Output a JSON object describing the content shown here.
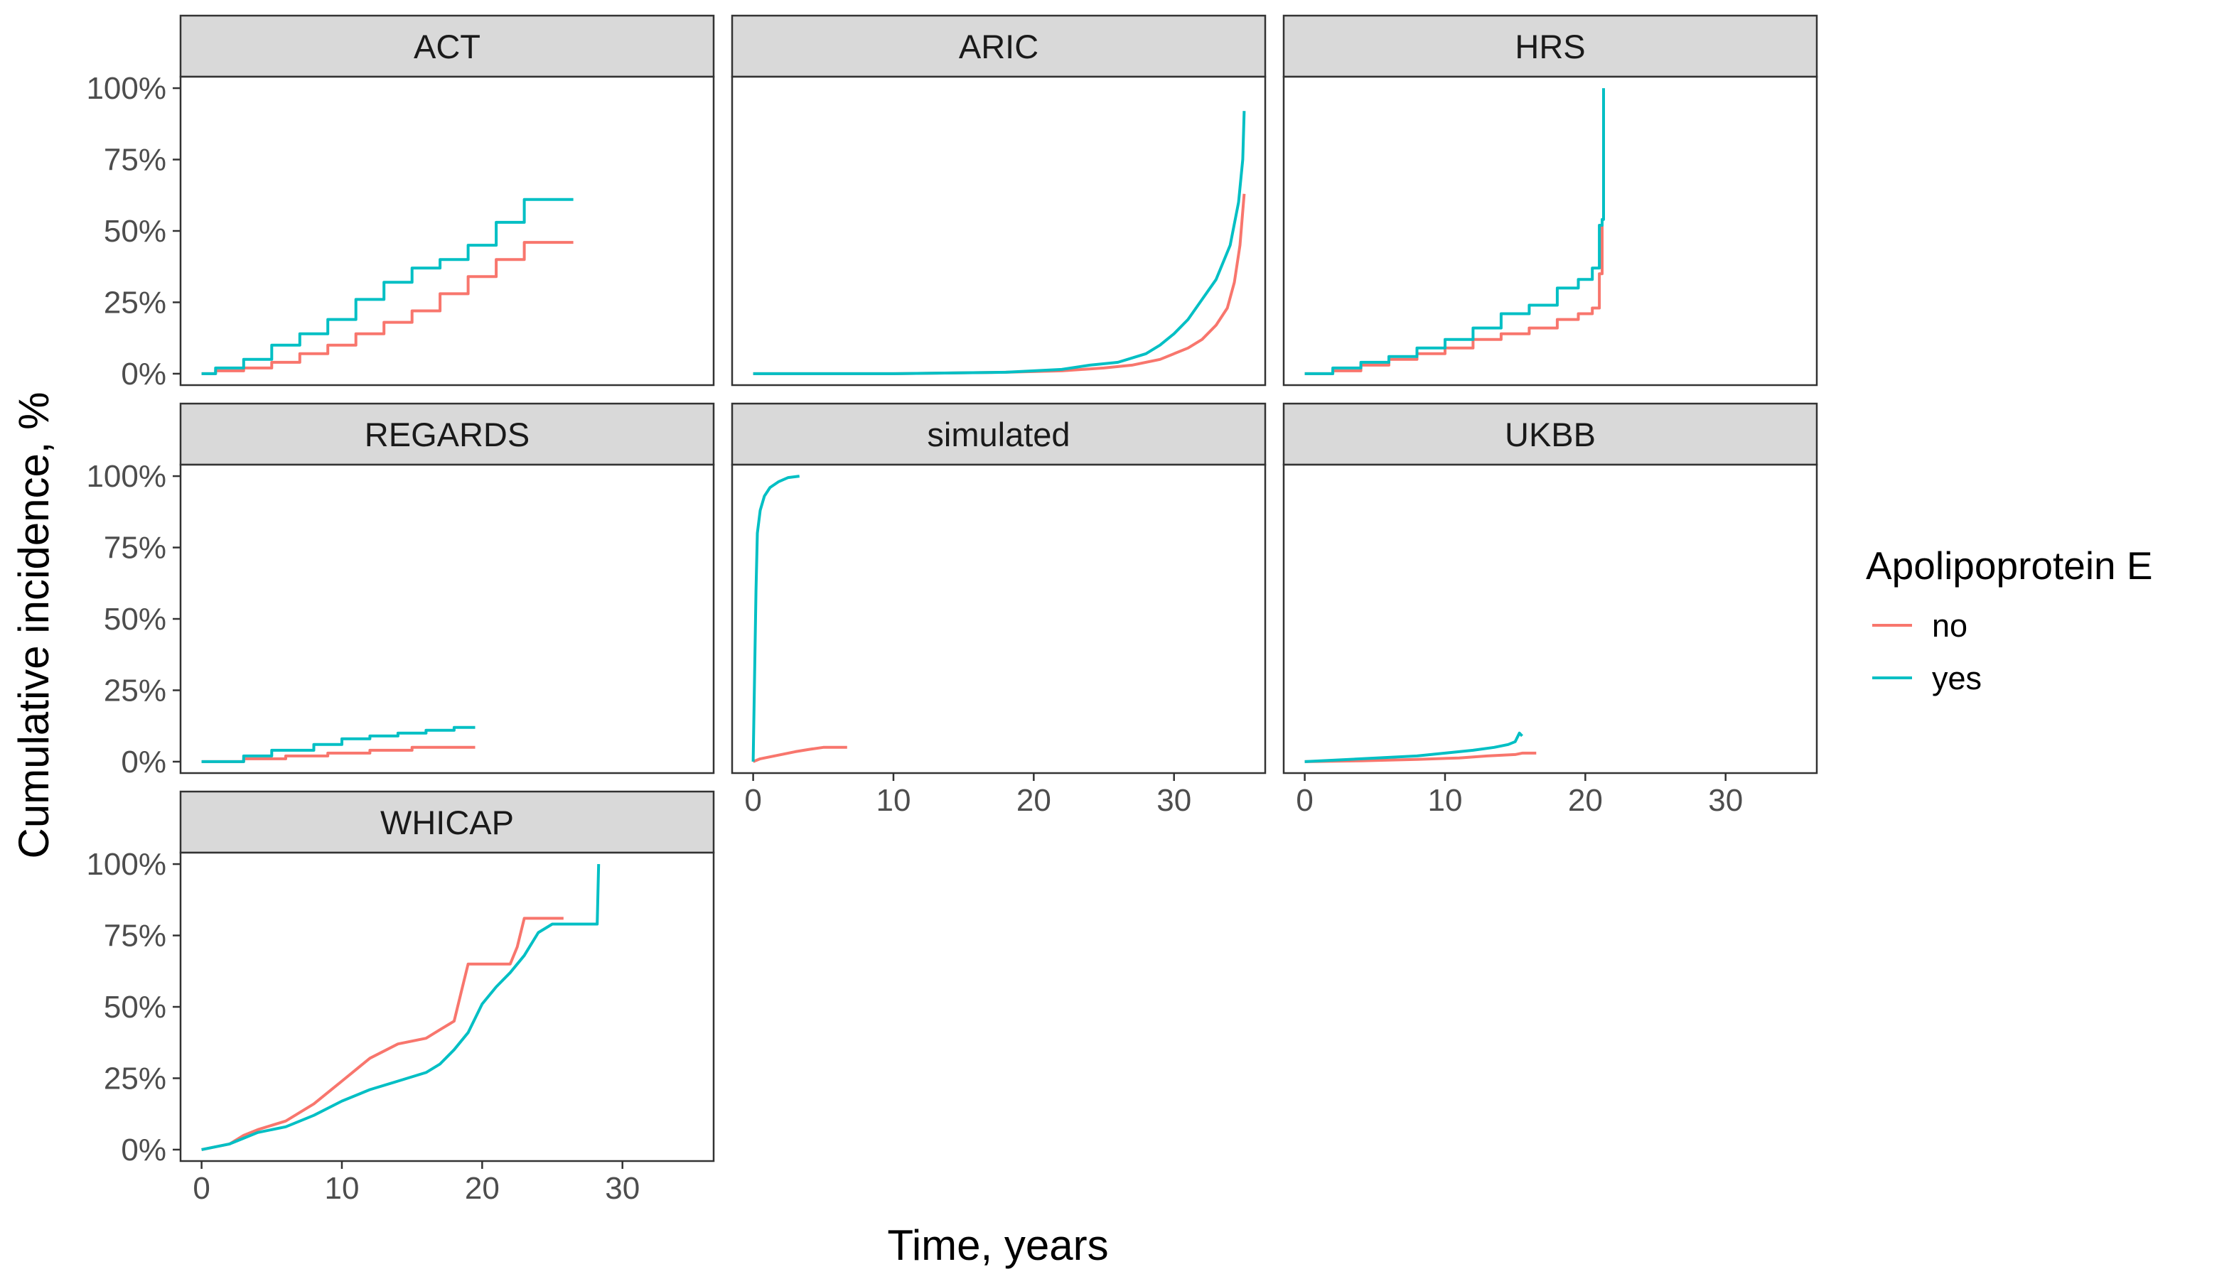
{
  "chart_data": {
    "type": "line",
    "title": "",
    "xlabel": "Time, years",
    "ylabel": "Cumulative incidence, %",
    "xlim": [
      -1.5,
      36.5
    ],
    "ylim": [
      -4,
      104
    ],
    "x_ticks": [
      0,
      10,
      20,
      30
    ],
    "y_ticks": [
      0,
      25,
      50,
      75,
      100
    ],
    "x_tick_labels": [
      "0",
      "10",
      "20",
      "30"
    ],
    "y_tick_labels": [
      "0%",
      "25%",
      "50%",
      "75%",
      "100%"
    ],
    "grid": false,
    "legend": {
      "title": "Apolipoprotein E",
      "placement": "right",
      "entries": [
        {
          "label": "no",
          "color": "#F8766D"
        },
        {
          "label": "yes",
          "color": "#00BFC4"
        }
      ]
    },
    "panels": [
      {
        "name": "ACT",
        "series": [
          {
            "name": "no",
            "step": true,
            "x": [
              0,
              1,
              3,
              5,
              7,
              9,
              11,
              13,
              15,
              17,
              19,
              21,
              23,
              26.5
            ],
            "y": [
              0,
              1,
              2,
              4,
              7,
              10,
              14,
              18,
              22,
              28,
              34,
              40,
              46,
              46
            ]
          },
          {
            "name": "yes",
            "step": true,
            "x": [
              0,
              1,
              3,
              5,
              7,
              9,
              11,
              13,
              15,
              17,
              19,
              21,
              23,
              26.5
            ],
            "y": [
              0,
              2,
              5,
              10,
              14,
              19,
              26,
              32,
              37,
              40,
              45,
              53,
              61,
              61
            ]
          }
        ]
      },
      {
        "name": "ARIC",
        "series": [
          {
            "name": "no",
            "step": false,
            "x": [
              0,
              10,
              18,
              22,
              25,
              27,
              29,
              30,
              31,
              32,
              33,
              33.8,
              34.3,
              34.7,
              35
            ],
            "y": [
              0,
              0,
              0.5,
              1,
              2,
              3,
              5,
              7,
              9,
              12,
              17,
              23,
              32,
              45,
              63
            ]
          },
          {
            "name": "yes",
            "step": false,
            "x": [
              0,
              10,
              18,
              22,
              24,
              26,
              28,
              29,
              30,
              31,
              32,
              33,
              34,
              34.6,
              34.9,
              35
            ],
            "y": [
              0,
              0,
              0.5,
              1.5,
              3,
              4,
              7,
              10,
              14,
              19,
              26,
              33,
              45,
              60,
              75,
              92
            ]
          }
        ]
      },
      {
        "name": "HRS",
        "series": [
          {
            "name": "no",
            "step": true,
            "x": [
              0,
              2,
              4,
              6,
              8,
              10,
              12,
              14,
              16,
              18,
              19.5,
              20.5,
              21,
              21.2
            ],
            "y": [
              0,
              1,
              3,
              5,
              7,
              9,
              12,
              14,
              16,
              19,
              21,
              23,
              35,
              54
            ]
          },
          {
            "name": "yes",
            "step": true,
            "x": [
              0,
              2,
              4,
              6,
              8,
              10,
              12,
              14,
              16,
              18,
              19.5,
              20.5,
              21,
              21.2,
              21.3
            ],
            "y": [
              0,
              2,
              4,
              6,
              9,
              12,
              16,
              21,
              24,
              30,
              33,
              37,
              52,
              54,
              100
            ]
          }
        ]
      },
      {
        "name": "REGARDS",
        "series": [
          {
            "name": "no",
            "step": true,
            "x": [
              0,
              3,
              6,
              9,
              12,
              15,
              19.5
            ],
            "y": [
              0,
              1,
              2,
              3,
              4,
              5,
              5
            ]
          },
          {
            "name": "yes",
            "step": true,
            "x": [
              0,
              3,
              5,
              8,
              10,
              12,
              14,
              16,
              18,
              19.5
            ],
            "y": [
              0,
              2,
              4,
              6,
              8,
              9,
              10,
              11,
              12,
              12
            ]
          }
        ]
      },
      {
        "name": "simulated",
        "series": [
          {
            "name": "no",
            "step": false,
            "x": [
              0,
              0.5,
              1,
              2,
              3,
              4,
              5,
              6.7
            ],
            "y": [
              0,
              1,
              1.5,
              2.5,
              3.5,
              4.3,
              5,
              5
            ]
          },
          {
            "name": "yes",
            "step": false,
            "x": [
              0,
              0.1,
              0.2,
              0.3,
              0.5,
              0.8,
              1.2,
              1.8,
              2.5,
              3.3
            ],
            "y": [
              0,
              30,
              60,
              80,
              88,
              93,
              96,
              98,
              99.5,
              100
            ]
          }
        ]
      },
      {
        "name": "UKBB",
        "series": [
          {
            "name": "no",
            "step": false,
            "x": [
              0,
              4,
              8,
              11,
              13,
              15,
              15.5,
              16.5
            ],
            "y": [
              0,
              0.3,
              0.8,
              1.3,
              2,
              2.5,
              3,
              3
            ]
          },
          {
            "name": "yes",
            "step": false,
            "x": [
              0,
              4,
              8,
              10,
              12,
              13.5,
              14.5,
              15,
              15.3,
              15.5
            ],
            "y": [
              0,
              1,
              2,
              3,
              4,
              5,
              6,
              7,
              10,
              9
            ]
          }
        ]
      },
      {
        "name": "WHICAP",
        "series": [
          {
            "name": "no",
            "step": false,
            "x": [
              0,
              1,
              2,
              3,
              4,
              6,
              8,
              10,
              12,
              14,
              16,
              17,
              18,
              18.5,
              19,
              20,
              21,
              22,
              22.5,
              23,
              24,
              25.8
            ],
            "y": [
              0,
              1,
              2,
              5,
              7,
              10,
              16,
              24,
              32,
              37,
              39,
              42,
              45,
              55,
              65,
              65,
              65,
              65,
              71,
              81,
              81,
              81
            ]
          },
          {
            "name": "yes",
            "step": false,
            "x": [
              0,
              1,
              2,
              3,
              4,
              6,
              8,
              10,
              12,
              14,
              16,
              17,
              18,
              19,
              20,
              21,
              22,
              23,
              24,
              25,
              26,
              28.2,
              28.3
            ],
            "y": [
              0,
              1,
              2,
              4,
              6,
              8,
              12,
              17,
              21,
              24,
              27,
              30,
              35,
              41,
              51,
              57,
              62,
              68,
              76,
              79,
              79,
              79,
              100
            ]
          }
        ]
      }
    ]
  }
}
